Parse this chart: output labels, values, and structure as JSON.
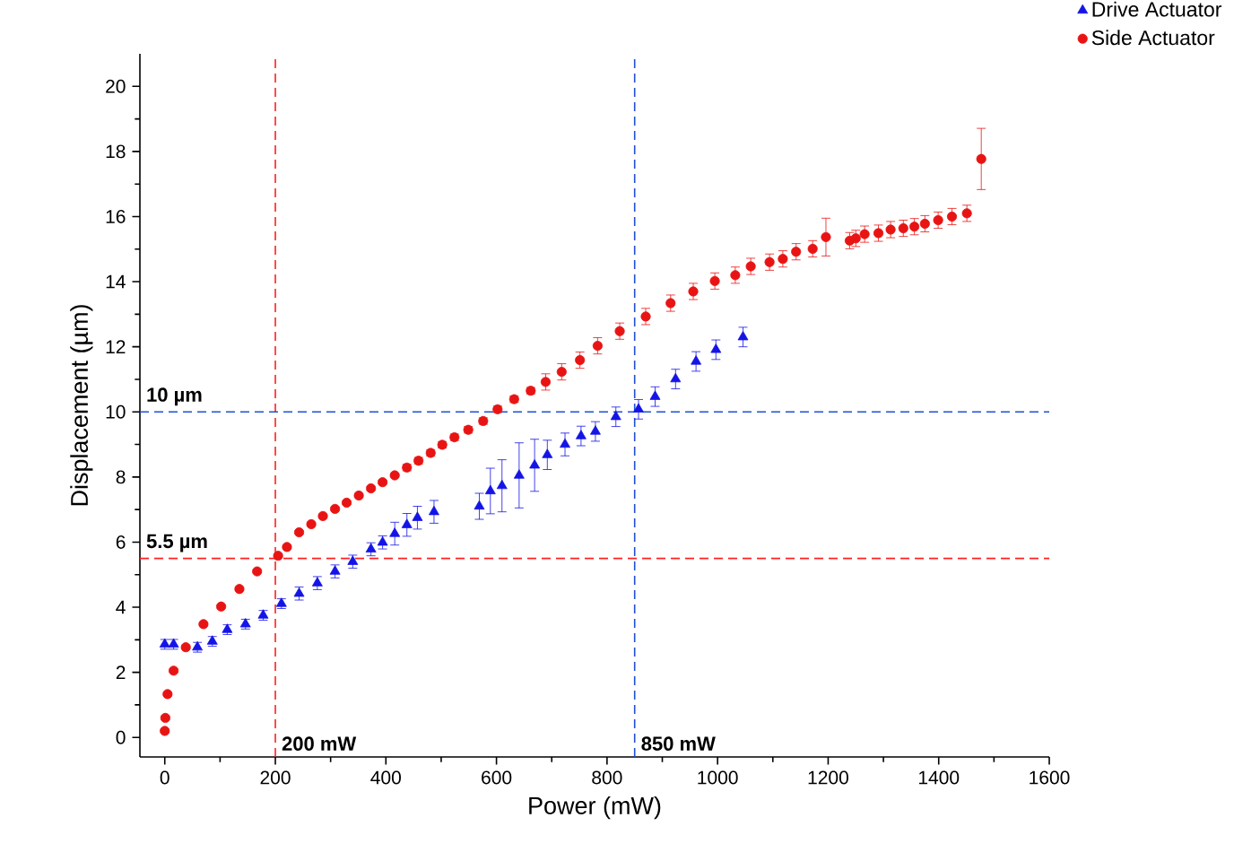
{
  "chart_data": {
    "type": "scatter",
    "xlabel": "Power (mW)",
    "ylabel": "Displacement (µm)",
    "xlim": [
      -45,
      1600
    ],
    "ylim": [
      -0.6,
      21
    ],
    "xticks": [
      0,
      200,
      400,
      600,
      800,
      1000,
      1200,
      1400,
      1600
    ],
    "yticks": [
      0,
      2,
      4,
      6,
      8,
      10,
      12,
      14,
      16,
      18,
      20
    ],
    "grid": false,
    "legend": "top right",
    "series": [
      {
        "name": "Drive Actuator",
        "color": "#1414e6",
        "marker": "triangle",
        "x": [
          0,
          16,
          38,
          59,
          86,
          113,
          146,
          178,
          211,
          243,
          276,
          308,
          340,
          373,
          394,
          416,
          438,
          457,
          487,
          569,
          589,
          610,
          641,
          669,
          692,
          724,
          753,
          779,
          816,
          857,
          887,
          924,
          961,
          997,
          1046
        ],
        "values": [
          2.86,
          2.86,
          null,
          2.77,
          2.95,
          3.31,
          3.48,
          3.75,
          4.11,
          4.42,
          4.74,
          5.1,
          5.4,
          5.78,
          5.99,
          6.26,
          6.53,
          6.75,
          6.93,
          7.1,
          7.57,
          7.73,
          8.05,
          8.36,
          8.68,
          9.0,
          9.26,
          9.4,
          9.85,
          10.08,
          10.47,
          11.01,
          11.55,
          11.91,
          12.3
        ],
        "errors": [
          0.15,
          0.15,
          null,
          0.15,
          0.15,
          0.15,
          0.15,
          0.15,
          0.15,
          0.2,
          0.2,
          0.2,
          0.2,
          0.2,
          0.2,
          0.35,
          0.35,
          0.35,
          0.35,
          0.4,
          0.7,
          0.8,
          1.0,
          0.8,
          0.45,
          0.35,
          0.3,
          0.3,
          0.3,
          0.3,
          0.3,
          0.3,
          0.3,
          0.3,
          0.3
        ]
      },
      {
        "name": "Side Actuator",
        "color": "#e81414",
        "marker": "circle",
        "x": [
          0,
          1,
          5,
          16,
          38,
          70,
          102,
          135,
          167,
          205,
          221,
          243,
          265,
          286,
          308,
          329,
          351,
          373,
          394,
          416,
          438,
          459,
          481,
          502,
          524,
          549,
          576,
          602,
          632,
          662,
          689,
          718,
          751,
          783,
          823,
          870,
          915,
          956,
          995,
          1032,
          1060,
          1094,
          1118,
          1142,
          1172,
          1196,
          1239,
          1250,
          1266,
          1291,
          1313,
          1336,
          1356,
          1375,
          1399,
          1424,
          1451,
          1477
        ],
        "values": [
          0.2,
          0.6,
          1.33,
          2.05,
          2.77,
          3.48,
          4.02,
          4.56,
          5.1,
          5.58,
          5.85,
          6.3,
          6.55,
          6.8,
          7.02,
          7.21,
          7.43,
          7.65,
          7.84,
          8.05,
          8.29,
          8.5,
          8.74,
          8.99,
          9.22,
          9.45,
          9.72,
          10.08,
          10.39,
          10.65,
          10.92,
          11.23,
          11.59,
          12.03,
          12.48,
          12.93,
          13.34,
          13.7,
          14.02,
          14.2,
          14.47,
          14.6,
          14.7,
          14.92,
          15.01,
          15.37,
          15.26,
          15.33,
          15.46,
          15.49,
          15.6,
          15.64,
          15.69,
          15.78,
          15.89,
          16.0,
          16.1,
          17.77
        ],
        "errors": [
          0.05,
          0.05,
          0.05,
          0.05,
          0.05,
          0.05,
          0.05,
          0.05,
          0.05,
          0.05,
          0.05,
          0.05,
          0.05,
          0.05,
          0.05,
          0.05,
          0.05,
          0.05,
          0.05,
          0.05,
          0.1,
          0.1,
          0.1,
          0.1,
          0.1,
          0.1,
          0.1,
          0.1,
          0.1,
          0.1,
          0.25,
          0.25,
          0.25,
          0.25,
          0.25,
          0.25,
          0.25,
          0.25,
          0.25,
          0.25,
          0.25,
          0.25,
          0.25,
          0.25,
          0.25,
          0.58,
          0.25,
          0.25,
          0.25,
          0.25,
          0.25,
          0.25,
          0.25,
          0.25,
          0.25,
          0.25,
          0.25,
          0.94
        ]
      }
    ],
    "ref_lines": [
      {
        "axis": "x",
        "value": 200,
        "label": "200 mW",
        "color": "#ff2020",
        "line_style": "dashed"
      },
      {
        "axis": "x",
        "value": 850,
        "label": "850 mW",
        "color": "#1f4fd6",
        "line_style": "dashed"
      },
      {
        "axis": "y",
        "value": 10,
        "label": "10 µm",
        "color": "#1f4fd6",
        "line_style": "dashed"
      },
      {
        "axis": "y",
        "value": 5.5,
        "label": "5.5 µm",
        "color": "#ff2020",
        "line_style": "dashed"
      }
    ]
  }
}
